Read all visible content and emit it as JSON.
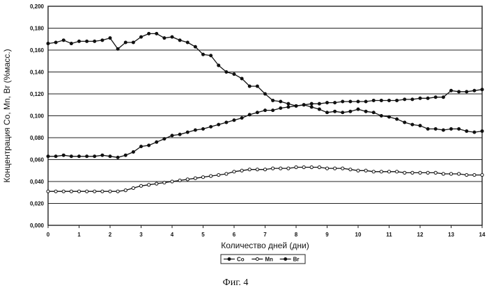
{
  "chart_data": {
    "type": "line",
    "ylabel": "Концентрация Co, Mn, Br (%масс.)",
    "xlabel": "Количество дней (дни)",
    "caption": "Фиг. 4",
    "xlim": [
      0,
      14
    ],
    "ylim": [
      0,
      0.2
    ],
    "x_ticks": [
      "0",
      "1",
      "2",
      "3",
      "4",
      "5",
      "6",
      "7",
      "8",
      "9",
      "10",
      "11",
      "12",
      "13",
      "14"
    ],
    "y_ticks": [
      "0,000",
      "0,020",
      "0,040",
      "0,060",
      "0,080",
      "0,100",
      "0,120",
      "0,140",
      "0,160",
      "0,180",
      "0,200"
    ],
    "grid": true,
    "legend_position": "bottom-center",
    "series": [
      {
        "name": "Co",
        "marker": "filled-circle",
        "color": "#111111",
        "x": [
          0,
          0.25,
          0.5,
          0.75,
          1,
          1.25,
          1.5,
          1.75,
          2,
          2.25,
          2.5,
          2.75,
          3,
          3.25,
          3.5,
          3.75,
          4,
          4.25,
          4.5,
          4.75,
          5,
          5.25,
          5.5,
          5.75,
          6,
          6.25,
          6.5,
          6.75,
          7,
          7.25,
          7.5,
          7.75,
          8,
          8.25,
          8.5,
          8.75,
          9,
          9.25,
          9.5,
          9.75,
          10,
          10.25,
          10.5,
          10.75,
          11,
          11.25,
          11.5,
          11.75,
          12,
          12.25,
          12.5,
          12.75,
          13,
          13.25,
          13.5,
          13.75,
          14
        ],
        "y": [
          0.166,
          0.167,
          0.169,
          0.166,
          0.168,
          0.168,
          0.168,
          0.169,
          0.171,
          0.161,
          0.167,
          0.167,
          0.172,
          0.175,
          0.175,
          0.171,
          0.172,
          0.169,
          0.167,
          0.163,
          0.156,
          0.155,
          0.146,
          0.14,
          0.138,
          0.134,
          0.127,
          0.127,
          0.12,
          0.114,
          0.113,
          0.111,
          0.109,
          0.11,
          0.108,
          0.106,
          0.103,
          0.104,
          0.103,
          0.104,
          0.106,
          0.104,
          0.103,
          0.1,
          0.099,
          0.097,
          0.094,
          0.092,
          0.091,
          0.088,
          0.088,
          0.087,
          0.088,
          0.088,
          0.086,
          0.085,
          0.086
        ]
      },
      {
        "name": "Mn",
        "marker": "circle",
        "color": "#111111",
        "x": [
          0,
          0.25,
          0.5,
          0.75,
          1,
          1.25,
          1.5,
          1.75,
          2,
          2.25,
          2.5,
          2.75,
          3,
          3.25,
          3.5,
          3.75,
          4,
          4.25,
          4.5,
          4.75,
          5,
          5.25,
          5.5,
          5.75,
          6,
          6.25,
          6.5,
          6.75,
          7,
          7.25,
          7.5,
          7.75,
          8,
          8.25,
          8.5,
          8.75,
          9,
          9.25,
          9.5,
          9.75,
          10,
          10.25,
          10.5,
          10.75,
          11,
          11.25,
          11.5,
          11.75,
          12,
          12.25,
          12.5,
          12.75,
          13,
          13.25,
          13.5,
          13.75,
          14
        ],
        "y": [
          0.031,
          0.031,
          0.031,
          0.031,
          0.031,
          0.031,
          0.031,
          0.031,
          0.031,
          0.031,
          0.032,
          0.034,
          0.036,
          0.037,
          0.038,
          0.039,
          0.04,
          0.041,
          0.042,
          0.043,
          0.044,
          0.045,
          0.046,
          0.047,
          0.049,
          0.05,
          0.051,
          0.051,
          0.051,
          0.052,
          0.052,
          0.052,
          0.053,
          0.053,
          0.053,
          0.053,
          0.052,
          0.052,
          0.052,
          0.051,
          0.05,
          0.05,
          0.049,
          0.049,
          0.049,
          0.049,
          0.048,
          0.048,
          0.048,
          0.048,
          0.048,
          0.047,
          0.047,
          0.047,
          0.046,
          0.046,
          0.046
        ]
      },
      {
        "name": "Br",
        "marker": "filled-circle",
        "color": "#111111",
        "x": [
          0,
          0.25,
          0.5,
          0.75,
          1,
          1.25,
          1.5,
          1.75,
          2,
          2.25,
          2.5,
          2.75,
          3,
          3.25,
          3.5,
          3.75,
          4,
          4.25,
          4.5,
          4.75,
          5,
          5.25,
          5.5,
          5.75,
          6,
          6.25,
          6.5,
          6.75,
          7,
          7.25,
          7.5,
          7.75,
          8,
          8.25,
          8.5,
          8.75,
          9,
          9.25,
          9.5,
          9.75,
          10,
          10.25,
          10.5,
          10.75,
          11,
          11.25,
          11.5,
          11.75,
          12,
          12.25,
          12.5,
          12.75,
          13,
          13.25,
          13.5,
          13.75,
          14
        ],
        "y": [
          0.063,
          0.063,
          0.064,
          0.063,
          0.063,
          0.063,
          0.063,
          0.064,
          0.063,
          0.062,
          0.064,
          0.067,
          0.072,
          0.073,
          0.076,
          0.079,
          0.082,
          0.083,
          0.085,
          0.087,
          0.088,
          0.09,
          0.092,
          0.094,
          0.096,
          0.098,
          0.101,
          0.103,
          0.105,
          0.105,
          0.107,
          0.108,
          0.109,
          0.11,
          0.111,
          0.111,
          0.112,
          0.112,
          0.113,
          0.113,
          0.113,
          0.113,
          0.114,
          0.114,
          0.114,
          0.114,
          0.115,
          0.115,
          0.116,
          0.116,
          0.117,
          0.117,
          0.123,
          0.122,
          0.122,
          0.123,
          0.124
        ]
      }
    ]
  }
}
